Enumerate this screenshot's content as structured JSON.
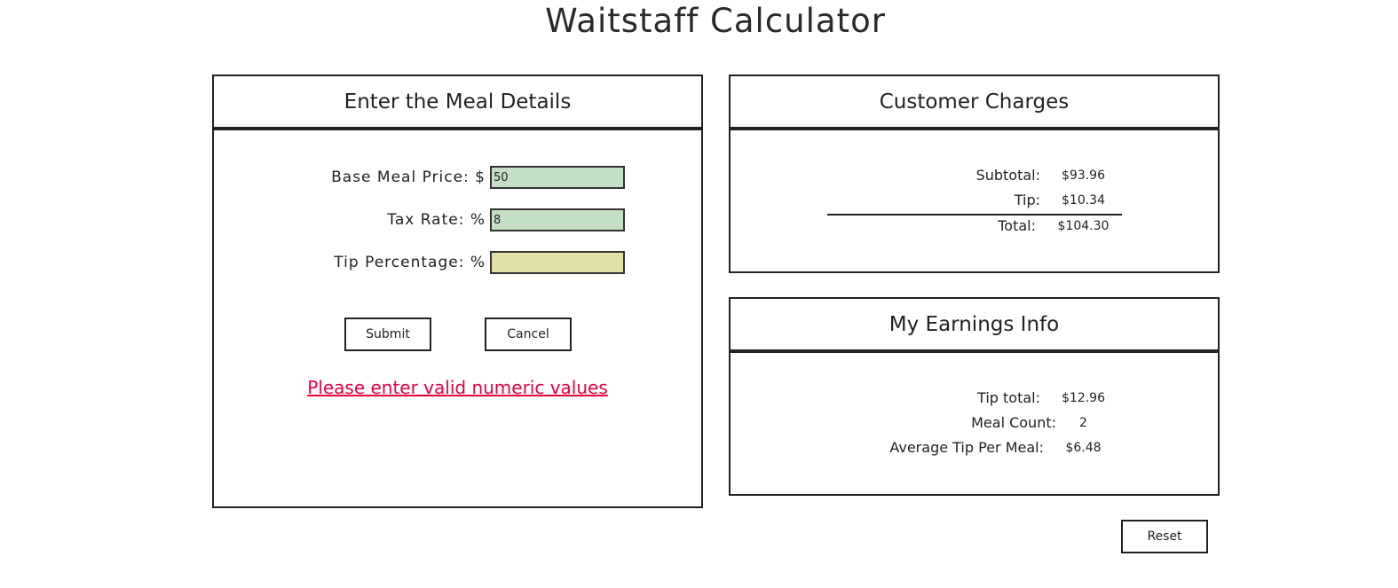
{
  "app": {
    "title": "Waitstaff Calculator"
  },
  "meal_details": {
    "heading": "Enter the Meal Details",
    "base_price": {
      "label": "Base Meal Price: $",
      "value": "50"
    },
    "tax_rate": {
      "label": "Tax Rate: %",
      "value": "8"
    },
    "tip_percentage": {
      "label": "Tip Percentage: %",
      "value": ""
    },
    "submit_label": "Submit",
    "cancel_label": "Cancel",
    "error_message": "Please enter valid numeric values"
  },
  "customer_charges": {
    "heading": "Customer Charges",
    "subtotal": {
      "label": "Subtotal:",
      "value": "$93.96"
    },
    "tip": {
      "label": "Tip:",
      "value": "$10.34"
    },
    "total": {
      "label": "Total:",
      "value": "$104.30"
    }
  },
  "earnings": {
    "heading": "My Earnings Info",
    "tip_total": {
      "label": "Tip total:",
      "value": "$12.96"
    },
    "meal_count": {
      "label": "Meal Count:",
      "value": "2"
    },
    "average_tip": {
      "label": "Average Tip Per Meal:",
      "value": "$6.48"
    }
  },
  "reset_label": "Reset",
  "colors": {
    "valid_input": "#c5dfc5",
    "invalid_input": "#e0e0a8",
    "error_text": "#e8003c",
    "border": "#222222"
  }
}
